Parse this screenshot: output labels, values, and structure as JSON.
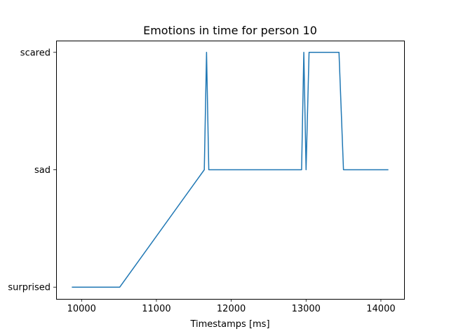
{
  "chart_data": {
    "type": "line",
    "title": "Emotions in time for person 10",
    "xlabel": "Timestamps [ms]",
    "ylabel": "",
    "xlim": [
      9660,
      14310
    ],
    "x_ticks": [
      10000,
      11000,
      12000,
      13000,
      14000
    ],
    "y_categories": [
      "surprised",
      "sad",
      "scared"
    ],
    "grid": false,
    "legend": "none",
    "series": [
      {
        "color": "#1f77b4",
        "x": [
          9870,
          10510,
          11640,
          11670,
          11700,
          12940,
          12970,
          13000,
          13040,
          13440,
          13500,
          14100
        ],
        "y": [
          "surprised",
          "surprised",
          "sad",
          "scared",
          "sad",
          "sad",
          "scared",
          "sad",
          "scared",
          "scared",
          "sad",
          "sad"
        ]
      }
    ]
  }
}
